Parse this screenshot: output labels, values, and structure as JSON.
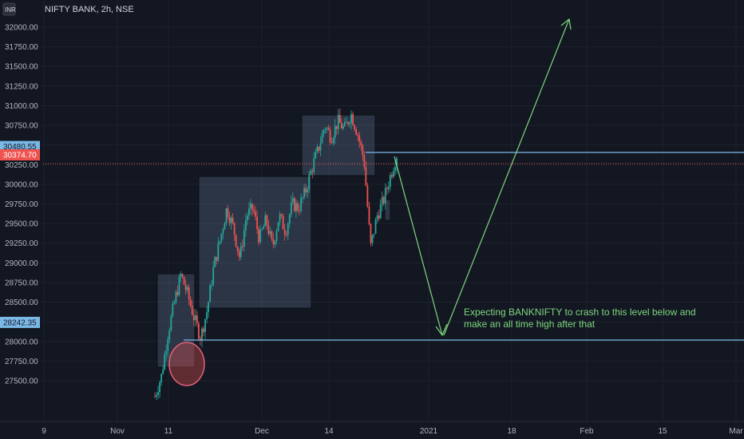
{
  "header": {
    "currency_badge": "INR",
    "symbol_title": "NIFTY BANK, 2h, NSE"
  },
  "chart_data": {
    "type": "candlestick",
    "title": "NIFTY BANK, 2h, NSE",
    "ylim": [
      27250,
      32250
    ],
    "y_ticks": [
      "32000.00",
      "31750.00",
      "31500.00",
      "31250.00",
      "31000.00",
      "30750.00",
      "30500.00",
      "30250.00",
      "30000.00",
      "29750.00",
      "29500.00",
      "29250.00",
      "29000.00",
      "28750.00",
      "28500.00",
      "28250.00",
      "28000.00",
      "27750.00",
      "27500.00"
    ],
    "y_tick_values": [
      32000,
      31750,
      31500,
      31250,
      31000,
      30750,
      30500,
      30250,
      30000,
      29750,
      29500,
      29250,
      29000,
      28750,
      28500,
      28250,
      28000,
      27750,
      27500
    ],
    "x_ticks": [
      "9",
      "Nov",
      "11",
      "Dec",
      "14",
      "2021",
      "18",
      "Feb",
      "15",
      "Mar"
    ],
    "price_labels": [
      {
        "text": "30480.55",
        "value": 30480.55,
        "kind": "level"
      },
      {
        "text": "30374.70",
        "value": 30374.7,
        "kind": "current"
      },
      {
        "text": "28242.35",
        "value": 28242.35,
        "kind": "level"
      }
    ],
    "horizontal_levels": [
      30480.55,
      28242.35
    ],
    "current_price": 30374.7,
    "annotation": {
      "line1": "Expecting BANKNIFTY to crash to this level below and",
      "line2": "make an all time high after that"
    },
    "price_path": [
      [
        0,
        27300
      ],
      [
        1,
        27560
      ],
      [
        2,
        28100
      ],
      [
        3,
        28500
      ],
      [
        4,
        28850
      ],
      [
        5,
        28600
      ],
      [
        6,
        28300
      ],
      [
        7,
        28050
      ],
      [
        8,
        28400
      ],
      [
        9,
        28950
      ],
      [
        10,
        29300
      ],
      [
        11,
        29700
      ],
      [
        12,
        29450
      ],
      [
        13,
        29050
      ],
      [
        14,
        29600
      ],
      [
        15,
        29700
      ],
      [
        16,
        29300
      ],
      [
        17,
        29550
      ],
      [
        18,
        29200
      ],
      [
        19,
        29600
      ],
      [
        20,
        29400
      ],
      [
        21,
        29750
      ],
      [
        22,
        29700
      ],
      [
        23,
        29900
      ],
      [
        24,
        30200
      ],
      [
        25,
        30450
      ],
      [
        26,
        30750
      ],
      [
        27,
        30600
      ],
      [
        28,
        30800
      ],
      [
        29,
        30700
      ],
      [
        30,
        30900
      ],
      [
        31,
        30650
      ],
      [
        32,
        30300
      ],
      [
        33,
        29200
      ],
      [
        34,
        29600
      ],
      [
        35,
        29800
      ],
      [
        36,
        30100
      ],
      [
        37,
        30380
      ]
    ],
    "up_color": "#26a69a",
    "down_color": "#ef5350",
    "level_color": "#7ab8e6",
    "arrow_color": "#7ed67e"
  }
}
